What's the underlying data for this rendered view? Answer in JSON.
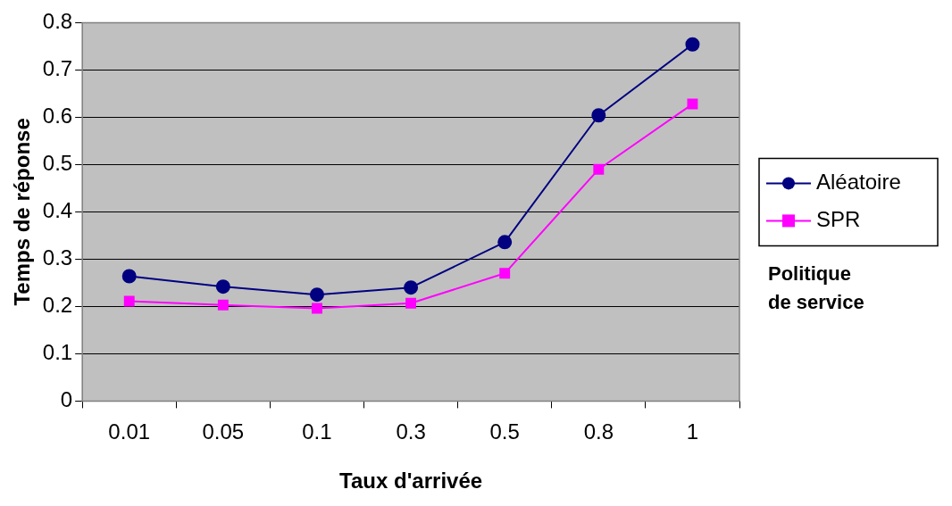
{
  "chart_data": {
    "type": "line",
    "xlabel": "Taux d'arrivée",
    "ylabel": "Temps de réponse",
    "legend_title": "Politique de service",
    "categories": [
      "0.01",
      "0.05",
      "0.1",
      "0.3",
      "0.5",
      "0.8",
      "1"
    ],
    "series": [
      {
        "name": "Aléatoire",
        "color": "#000080",
        "marker": "circle",
        "values": [
          0.264,
          0.242,
          0.225,
          0.24,
          0.336,
          0.604,
          0.754
        ]
      },
      {
        "name": "SPR",
        "color": "#ff00ff",
        "marker": "square",
        "values": [
          0.211,
          0.203,
          0.196,
          0.207,
          0.27,
          0.49,
          0.628
        ]
      }
    ],
    "ylim": [
      0,
      0.8
    ],
    "yticks": [
      0,
      0.1,
      0.2,
      0.3,
      0.4,
      0.5,
      0.6,
      0.7,
      0.8
    ],
    "grid": "y",
    "legend": "right",
    "line_style": "solid"
  }
}
